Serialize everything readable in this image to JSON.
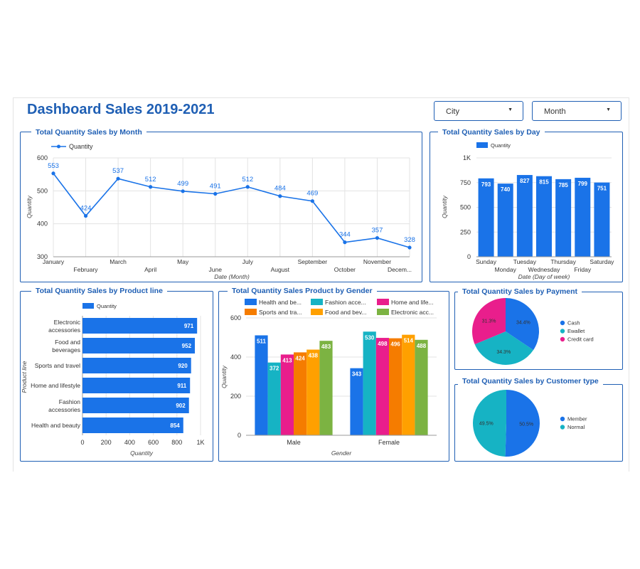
{
  "header": {
    "title": "Dashboard Sales 2019-2021",
    "filters": [
      {
        "label": "City",
        "arrow": "▼"
      },
      {
        "label": "Month",
        "arrow": "▼"
      }
    ]
  },
  "colors": {
    "accent": "#1f5fb4",
    "bar": "#1a73e8",
    "pink": "#e91e8c",
    "teal": "#16b3c4",
    "orange": "#f57c00",
    "amber": "#ffa000",
    "green": "#7cb342"
  },
  "chart_data": [
    {
      "id": "month",
      "type": "line",
      "title": "Total Quantity Sales by Month",
      "legend": [
        "Quantity"
      ],
      "legend_position": "top-left",
      "xlabel": "Date (Month)",
      "ylabel": "Quantity",
      "ylim": [
        300,
        600
      ],
      "yticks": [
        "300",
        "400",
        "500",
        "600"
      ],
      "categories": [
        "January",
        "February",
        "March",
        "April",
        "May",
        "June",
        "July",
        "August",
        "September",
        "October",
        "November",
        "Decem..."
      ],
      "values": [
        553,
        424,
        537,
        512,
        499,
        491,
        512,
        484,
        469,
        344,
        357,
        328
      ],
      "grid": true
    },
    {
      "id": "day",
      "type": "bar",
      "title": "Total Quantity Sales by Day",
      "legend": [
        "Quantity"
      ],
      "legend_position": "top-left",
      "xlabel": "Date (Day of week)",
      "ylabel": "Quantity",
      "ylim": [
        0,
        1000
      ],
      "yticks": [
        "0",
        "250",
        "500",
        "750",
        "1K"
      ],
      "categories": [
        "Sunday",
        "Monday",
        "Tuesday",
        "Wednesday",
        "Thursday",
        "Friday",
        "Saturday"
      ],
      "values": [
        793,
        740,
        827,
        815,
        785,
        799,
        751
      ],
      "grid": true
    },
    {
      "id": "productline",
      "type": "bar",
      "orientation": "horizontal",
      "title": "Total Quantity Sales by Product line",
      "legend": [
        "Quantity"
      ],
      "legend_position": "top-left",
      "xlabel": "Quantity",
      "ylabel": "Product line",
      "xlim": [
        0,
        1000
      ],
      "xticks": [
        "0",
        "200",
        "400",
        "600",
        "800",
        "1K"
      ],
      "categories": [
        [
          "Electronic",
          "accessories"
        ],
        [
          "Food and",
          "beverages"
        ],
        [
          "Sports and travel"
        ],
        [
          "Home and lifestyle"
        ],
        [
          "Fashion",
          "accessories"
        ],
        [
          "Health and beauty"
        ]
      ],
      "values": [
        971,
        952,
        920,
        911,
        902,
        854
      ],
      "grid": true
    },
    {
      "id": "gender",
      "type": "bar",
      "title": "Total Quantity Sales Product by Gender",
      "legend_position": "top",
      "xlabel": "Gender",
      "ylabel": "Quantity",
      "ylim": [
        0,
        600
      ],
      "yticks": [
        "0",
        "200",
        "400",
        "600"
      ],
      "categories": [
        "Male",
        "Female"
      ],
      "series": [
        {
          "name": "Health and be...",
          "color": "#1a73e8",
          "values": [
            511,
            343
          ]
        },
        {
          "name": "Fashion acce...",
          "color": "#16b3c4",
          "values": [
            372,
            530
          ]
        },
        {
          "name": "Home and life...",
          "color": "#e91e8c",
          "values": [
            413,
            498
          ]
        },
        {
          "name": "Sports and tra...",
          "color": "#f57c00",
          "values": [
            424,
            496
          ]
        },
        {
          "name": "Food and bev...",
          "color": "#ffa000",
          "values": [
            438,
            514
          ]
        },
        {
          "name": "Electronic acc...",
          "color": "#7cb342",
          "values": [
            483,
            488
          ]
        }
      ],
      "grid": true
    },
    {
      "id": "payment",
      "type": "pie",
      "title": "Total Quantity Sales by Payment",
      "legend_position": "right",
      "slices": [
        {
          "name": "Cash",
          "value": 34.4,
          "label": "34.4%",
          "color": "#1a73e8"
        },
        {
          "name": "Ewallet",
          "value": 34.3,
          "label": "34.3%",
          "color": "#16b3c4"
        },
        {
          "name": "Credit card",
          "value": 31.3,
          "label": "31.3%",
          "color": "#e91e8c"
        }
      ]
    },
    {
      "id": "customer",
      "type": "pie",
      "title": "Total Quantity Sales by Customer type",
      "legend_position": "right",
      "slices": [
        {
          "name": "Member",
          "value": 50.5,
          "label": "50.5%",
          "color": "#1a73e8"
        },
        {
          "name": "Normal",
          "value": 49.5,
          "label": "49.5%",
          "color": "#16b3c4"
        }
      ]
    }
  ]
}
